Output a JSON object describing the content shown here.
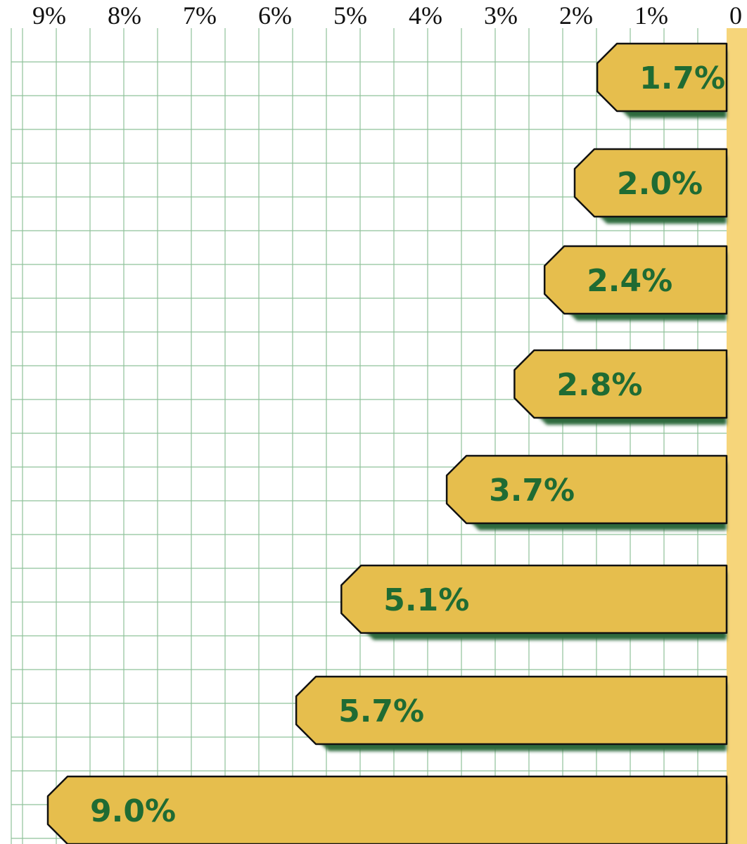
{
  "chart_data": {
    "type": "bar",
    "orientation": "horizontal",
    "direction": "right-to-left",
    "values": [
      1.7,
      2.0,
      2.4,
      2.8,
      3.7,
      5.1,
      5.7,
      9.0
    ],
    "labels": [
      "1.7%",
      "2.0%",
      "2.4%",
      "2.8%",
      "3.7%",
      "5.1%",
      "5.7%",
      "9.0%"
    ],
    "x_ticks": [
      {
        "value": 9,
        "label": "9%"
      },
      {
        "value": 8,
        "label": "8%"
      },
      {
        "value": 7,
        "label": "7%"
      },
      {
        "value": 6,
        "label": "6%"
      },
      {
        "value": 5,
        "label": "5%"
      },
      {
        "value": 4,
        "label": "4%"
      },
      {
        "value": 3,
        "label": "3%"
      },
      {
        "value": 2,
        "label": "2%"
      },
      {
        "value": 1,
        "label": "1%"
      },
      {
        "value": 0,
        "label": "0"
      }
    ],
    "xlim": [
      0,
      9.3
    ],
    "grid": true,
    "colors": {
      "bar": "#e6be4d",
      "bar_outline": "#111111",
      "shadow": "#2f6a3c",
      "label": "#1f6b33",
      "grid": "#8fc29a",
      "axis_strip": "#f6d57a"
    }
  }
}
